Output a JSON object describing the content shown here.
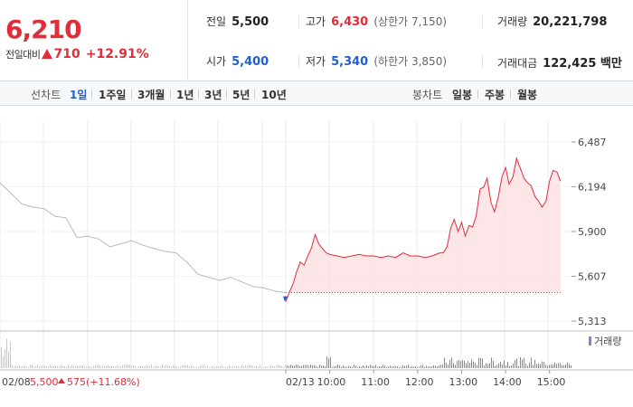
{
  "quote": {
    "price": "6,210",
    "change_label": "전일대비",
    "change_value": "710",
    "change_pct": "+12.91%"
  },
  "stats": {
    "prev_close_label": "전일",
    "prev_close": "5,500",
    "open_label": "시가",
    "open": "5,400",
    "high_label": "고가",
    "high": "6,430",
    "upper_limit": "(상한가 7,150)",
    "low_label": "저가",
    "low": "5,340",
    "lower_limit": "(하한가 3,850)",
    "volume_label": "거래량",
    "volume": "20,221,798",
    "amount_label": "거래대금",
    "amount": "122,425 백만"
  },
  "tabs": {
    "line_chart_label": "선차트",
    "periods": [
      "1일",
      "1주일",
      "3개월",
      "1년",
      "3년",
      "5년",
      "10년"
    ],
    "active_period": "1일",
    "candle_chart_label": "봉차트",
    "candles": [
      "일봉",
      "주봉",
      "월봉"
    ]
  },
  "colors": {
    "up": "#e12d3a",
    "down": "#2160d2",
    "prev_day_line": "#b9b9b9",
    "volume": "#8c7fcf"
  },
  "chart_data": {
    "type": "line",
    "ylim": [
      5313,
      6487
    ],
    "y_ticks": [
      "6,487",
      "6,194",
      "5,900",
      "5,607",
      "5,313"
    ],
    "x_ticks": [
      "02/13",
      "10:00",
      "11:00",
      "12:00",
      "13:00",
      "14:00",
      "15:00"
    ],
    "prev_day": {
      "date": "02/08",
      "close": "5,500",
      "change": "575",
      "change_pct": "(+11.68%)",
      "x": [
        9.0,
        9.25,
        9.5,
        9.75,
        10.0,
        10.25,
        10.5,
        10.75,
        11.0,
        11.25,
        11.5,
        11.75,
        12.0,
        12.25,
        12.5,
        12.75,
        13.0,
        13.25,
        13.5,
        13.75,
        14.0,
        14.25,
        14.5,
        14.75,
        15.0,
        15.25,
        15.5
      ],
      "y": [
        6220,
        6150,
        6080,
        6060,
        6050,
        6000,
        5990,
        5860,
        5870,
        5850,
        5800,
        5820,
        5840,
        5810,
        5790,
        5770,
        5760,
        5700,
        5620,
        5600,
        5580,
        5600,
        5570,
        5540,
        5530,
        5510,
        5500
      ]
    },
    "series": [
      {
        "name": "02/13",
        "x": [
          9.0,
          9.08,
          9.17,
          9.25,
          9.33,
          9.42,
          9.5,
          9.58,
          9.67,
          9.75,
          9.83,
          9.92,
          10.0,
          10.17,
          10.33,
          10.5,
          10.67,
          10.83,
          11.0,
          11.17,
          11.33,
          11.5,
          11.67,
          11.83,
          12.0,
          12.17,
          12.33,
          12.5,
          12.58,
          12.67,
          12.75,
          12.83,
          12.92,
          13.0,
          13.08,
          13.17,
          13.25,
          13.33,
          13.42,
          13.5,
          13.58,
          13.67,
          13.75,
          13.83,
          13.92,
          14.0,
          14.08,
          14.17,
          14.25,
          14.33,
          14.42,
          14.5,
          14.58,
          14.67,
          14.75,
          14.83,
          14.92,
          15.0,
          15.08,
          15.17,
          15.25
        ],
        "y": [
          5440,
          5500,
          5560,
          5640,
          5700,
          5680,
          5740,
          5790,
          5880,
          5820,
          5790,
          5760,
          5750,
          5740,
          5730,
          5740,
          5750,
          5740,
          5740,
          5730,
          5740,
          5730,
          5760,
          5740,
          5740,
          5730,
          5740,
          5760,
          5760,
          5800,
          5920,
          5980,
          5900,
          5960,
          5870,
          5940,
          5930,
          6000,
          6180,
          6190,
          6250,
          6090,
          6030,
          6120,
          6260,
          6320,
          6210,
          6260,
          6380,
          6320,
          6250,
          6220,
          6200,
          6130,
          6100,
          6060,
          6100,
          6230,
          6300,
          6290,
          6230
        ]
      }
    ],
    "open_line": 5500,
    "volume_label": "거래량"
  }
}
